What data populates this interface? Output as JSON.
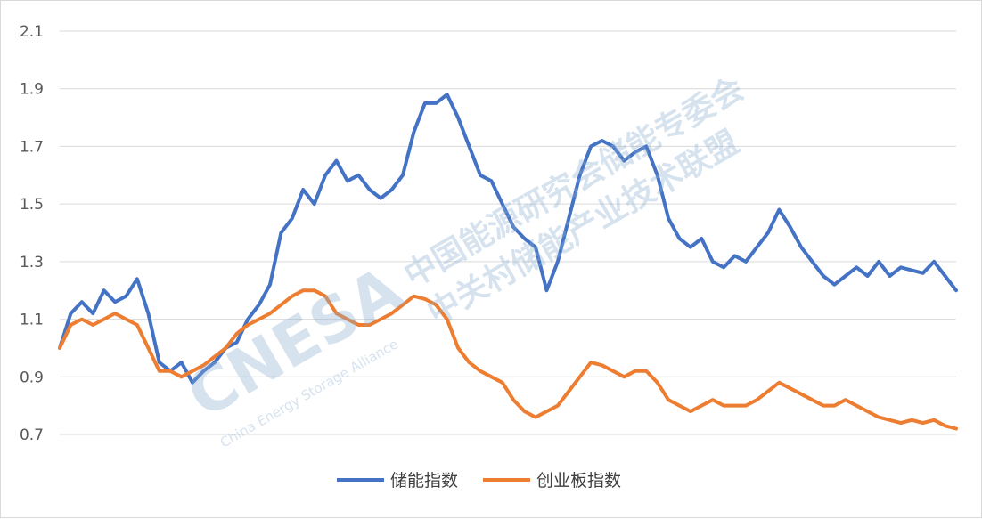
{
  "chart_data": {
    "type": "line",
    "title": "",
    "xlabel": "",
    "ylabel": "",
    "ylim": [
      0.7,
      2.1
    ],
    "yticks": [
      0.7,
      0.9,
      1.1,
      1.3,
      1.5,
      1.7,
      1.9,
      2.1
    ],
    "ytick_labels": [
      "0.7",
      "0.9",
      "1.1",
      "1.3",
      "1.5",
      "1.7",
      "1.9",
      "2.1"
    ],
    "grid": true,
    "legend_position": "bottom",
    "series": [
      {
        "name": "储能指数",
        "color": "#4472C4",
        "values": [
          1.0,
          1.12,
          1.16,
          1.12,
          1.2,
          1.16,
          1.18,
          1.24,
          1.12,
          0.95,
          0.92,
          0.95,
          0.88,
          0.92,
          0.95,
          1.0,
          1.02,
          1.1,
          1.15,
          1.22,
          1.4,
          1.45,
          1.55,
          1.5,
          1.6,
          1.65,
          1.58,
          1.6,
          1.55,
          1.52,
          1.55,
          1.6,
          1.75,
          1.85,
          1.85,
          1.88,
          1.8,
          1.7,
          1.6,
          1.58,
          1.5,
          1.42,
          1.38,
          1.35,
          1.2,
          1.3,
          1.45,
          1.6,
          1.7,
          1.72,
          1.7,
          1.65,
          1.68,
          1.7,
          1.6,
          1.45,
          1.38,
          1.35,
          1.38,
          1.3,
          1.28,
          1.32,
          1.3,
          1.35,
          1.4,
          1.48,
          1.42,
          1.35,
          1.3,
          1.25,
          1.22,
          1.25,
          1.28,
          1.25,
          1.3,
          1.25,
          1.28,
          1.27,
          1.26,
          1.3,
          1.25,
          1.2
        ]
      },
      {
        "name": "创业板指数",
        "color": "#ED7D31",
        "values": [
          1.0,
          1.08,
          1.1,
          1.08,
          1.1,
          1.12,
          1.1,
          1.08,
          1.0,
          0.92,
          0.92,
          0.9,
          0.92,
          0.94,
          0.97,
          1.0,
          1.05,
          1.08,
          1.1,
          1.12,
          1.15,
          1.18,
          1.2,
          1.2,
          1.18,
          1.12,
          1.1,
          1.08,
          1.08,
          1.1,
          1.12,
          1.15,
          1.18,
          1.17,
          1.15,
          1.1,
          1.0,
          0.95,
          0.92,
          0.9,
          0.88,
          0.82,
          0.78,
          0.76,
          0.78,
          0.8,
          0.85,
          0.9,
          0.95,
          0.94,
          0.92,
          0.9,
          0.92,
          0.92,
          0.88,
          0.82,
          0.8,
          0.78,
          0.8,
          0.82,
          0.8,
          0.8,
          0.8,
          0.82,
          0.85,
          0.88,
          0.86,
          0.84,
          0.82,
          0.8,
          0.8,
          0.82,
          0.8,
          0.78,
          0.76,
          0.75,
          0.74,
          0.75,
          0.74,
          0.75,
          0.73,
          0.72
        ]
      }
    ]
  },
  "legend": {
    "items": [
      {
        "label": "储能指数",
        "color": "#4472C4"
      },
      {
        "label": "创业板指数",
        "color": "#ED7D31"
      }
    ]
  },
  "watermark": {
    "logo_text": "CNESA",
    "logo_subtext": "China Energy Storage Alliance",
    "line1": "中国能源研究会储能专委会",
    "line2": "中关村储能产业技术联盟"
  }
}
